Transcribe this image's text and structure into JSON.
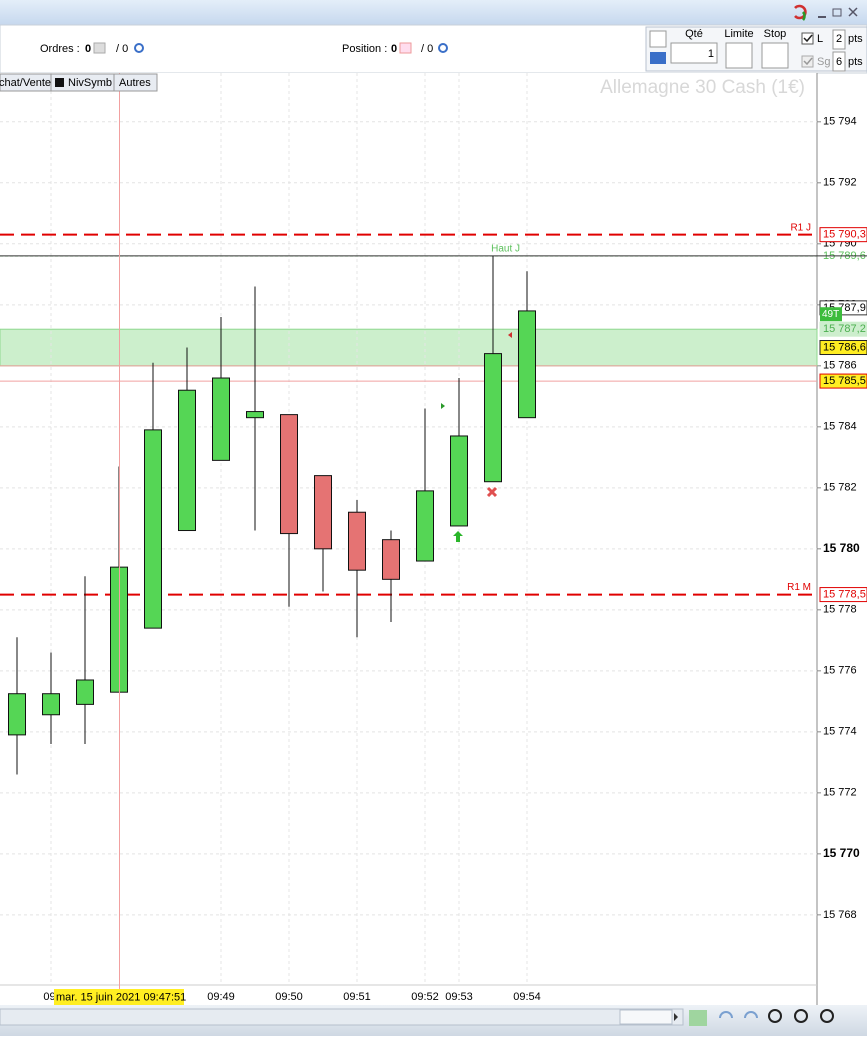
{
  "ui": {
    "orders_label": "Ordres :",
    "orders_count": "0",
    "orders_total": "/ 0",
    "position_label": "Position :",
    "position_count": "0",
    "position_total": "/ 0",
    "qty_label": "Qté",
    "qty_value": "1",
    "limit_label": "Limite",
    "stop_label": "Stop",
    "l_label": "L",
    "l_value": "2",
    "l_unit": "pts",
    "sg_label": "Sg",
    "sg_value": "6",
    "sg_unit": "pts",
    "tabs": [
      "chat/Vente",
      "NivSymb",
      "Autres"
    ]
  },
  "chart_data": {
    "type": "candlestick",
    "title": "Allemagne 30 Cash (1€)",
    "categories": [
      null,
      "09:",
      null,
      null,
      null,
      null,
      "09:49",
      null,
      "09:50",
      null,
      "09:51",
      null,
      "09:52",
      "09:53",
      null,
      "09:54"
    ],
    "open": [
      15773.9,
      15774.56,
      15774.9,
      15775.3,
      15777.4,
      15780.6,
      15782.9,
      15784.3,
      15784.4,
      15782.4,
      15781.2,
      15780.3,
      15779.6,
      15780.75,
      15782.2,
      15784.3
    ],
    "high": [
      15777.1,
      15776.6,
      15779.1,
      15782.7,
      15786.1,
      15786.6,
      15787.6,
      15788.6,
      15784.4,
      15782.4,
      15781.6,
      15780.6,
      15784.6,
      15785.6,
      15789.6,
      15789.1
    ],
    "low": [
      15772.6,
      15773.6,
      15773.6,
      15775.3,
      15777.4,
      15780.6,
      15782.9,
      15780.6,
      15778.1,
      15778.6,
      15777.1,
      15777.6,
      15779.6,
      15780.75,
      15782.2,
      15784.3
    ],
    "close": [
      15775.25,
      15775.25,
      15775.7,
      15779.4,
      15783.9,
      15785.2,
      15785.6,
      15784.5,
      15780.5,
      15780.0,
      15779.3,
      15779.0,
      15781.9,
      15783.7,
      15786.4,
      15787.8
    ],
    "up_color": "#55d655",
    "down_color": "#e57373",
    "ylim": [
      15765.7,
      15795.6
    ],
    "yticks": [
      {
        "value": 15768,
        "label": "15 768"
      },
      {
        "value": 15770,
        "label": "15 770"
      },
      {
        "value": 15772,
        "label": "15 772"
      },
      {
        "value": 15774,
        "label": "15 774"
      },
      {
        "value": 15776,
        "label": "15 776"
      },
      {
        "value": 15778,
        "label": "15 778"
      },
      {
        "value": 15780,
        "label": "15 780"
      },
      {
        "value": 15782,
        "label": "15 782"
      },
      {
        "value": 15784,
        "label": "15 784"
      },
      {
        "value": 15786,
        "label": "15 786"
      },
      {
        "value": 15788,
        "label": "15 788"
      },
      {
        "value": 15790,
        "label": "15 790"
      },
      {
        "value": 15792,
        "label": "15 792"
      },
      {
        "value": 15794,
        "label": "15 794"
      }
    ],
    "bold_ticks": [
      15770,
      15780
    ],
    "grid": true,
    "zone": [
      15786.0,
      15787.2
    ],
    "levels": [
      {
        "name": "R1 J",
        "value": 15790.3,
        "label": "15 790,3",
        "color": "#e00000",
        "style": "dashed"
      },
      {
        "name": "R1 M",
        "value": 15778.5,
        "label": "15 778,5",
        "color": "#e00000",
        "style": "dashed"
      },
      {
        "name": "Haut J",
        "value": 15789.6,
        "label": "15 789,6",
        "color": "#5cc05c",
        "style": "dotted"
      }
    ],
    "price_labels": [
      {
        "value": 15787.9,
        "label": "15 787,9",
        "bg": "#ffffff",
        "border": "#333333",
        "fg": "#000000"
      },
      {
        "value": 15787.2,
        "label": "15 787,2",
        "bg": "#cdeecd",
        "border": "#cdeecd",
        "fg": "#4caf50"
      },
      {
        "value": 15786.6,
        "label": "15 786,6",
        "bg": "#ffee22",
        "border": "#222222",
        "fg": "#000000"
      },
      {
        "value": 15785.5,
        "label": "15 785,5",
        "bg": "#ffee22",
        "border": "#e00000",
        "fg": "#000000"
      }
    ],
    "badge": "49T",
    "crosshair_label": "mar. 15 juin 2021 09:47:51"
  }
}
